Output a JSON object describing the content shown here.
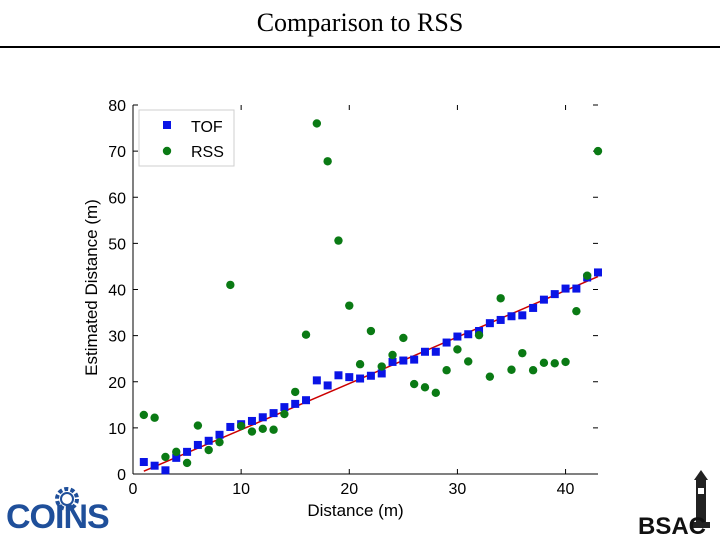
{
  "slide": {
    "title": "Comparison to RSS"
  },
  "logos": {
    "left_text": "COINS",
    "right_text": "BSAC"
  },
  "colors": {
    "tof": "#0a14e6",
    "rss": "#0a7a14",
    "fit_line": "#cc0000",
    "brand_blue": "#1f4f9a"
  },
  "chart_data": {
    "type": "scatter",
    "title": "",
    "xlabel": "Distance (m)",
    "ylabel": "Estimated Distance (m)",
    "xlim": [
      0,
      43
    ],
    "ylim": [
      0,
      80
    ],
    "xticks": [
      0,
      10,
      20,
      30,
      40
    ],
    "yticks": [
      0,
      10,
      20,
      30,
      40,
      50,
      60,
      70,
      80
    ],
    "grid": false,
    "legend_position": "top-left",
    "series": [
      {
        "name": "TOF",
        "marker": "square",
        "color": "#0a14e6",
        "points": [
          [
            1,
            2.6
          ],
          [
            2,
            1.8
          ],
          [
            3,
            0.8
          ],
          [
            4,
            3.5
          ],
          [
            5,
            4.8
          ],
          [
            6,
            6.3
          ],
          [
            7,
            7.2
          ],
          [
            8,
            8.5
          ],
          [
            9,
            10.2
          ],
          [
            10,
            10.8
          ],
          [
            11,
            11.5
          ],
          [
            12,
            12.3
          ],
          [
            13,
            13.2
          ],
          [
            14,
            14.5
          ],
          [
            15,
            15.2
          ],
          [
            16,
            16.0
          ],
          [
            17,
            20.3
          ],
          [
            18,
            19.2
          ],
          [
            19,
            21.4
          ],
          [
            20,
            21.0
          ],
          [
            21,
            20.7
          ],
          [
            22,
            21.3
          ],
          [
            23,
            21.8
          ],
          [
            24,
            24.3
          ],
          [
            25,
            24.6
          ],
          [
            26,
            24.8
          ],
          [
            27,
            26.5
          ],
          [
            28,
            26.5
          ],
          [
            29,
            28.5
          ],
          [
            30,
            29.8
          ],
          [
            31,
            30.3
          ],
          [
            32,
            31.0
          ],
          [
            33,
            32.7
          ],
          [
            34,
            33.4
          ],
          [
            35,
            34.2
          ],
          [
            36,
            34.4
          ],
          [
            37,
            36.0
          ],
          [
            38,
            37.8
          ],
          [
            39,
            39.0
          ],
          [
            40,
            40.2
          ],
          [
            41,
            40.2
          ],
          [
            42,
            42.6
          ],
          [
            43,
            43.7
          ]
        ]
      },
      {
        "name": "RSS",
        "marker": "circle",
        "color": "#0a7a14",
        "points": [
          [
            1,
            12.8
          ],
          [
            2,
            12.2
          ],
          [
            3,
            3.7
          ],
          [
            4,
            4.8
          ],
          [
            5,
            2.4
          ],
          [
            6,
            10.5
          ],
          [
            7,
            5.2
          ],
          [
            8,
            6.9
          ],
          [
            9,
            41.0
          ],
          [
            10,
            10.4
          ],
          [
            11,
            9.2
          ],
          [
            12,
            9.8
          ],
          [
            13,
            9.6
          ],
          [
            14,
            13.0
          ],
          [
            15,
            17.8
          ],
          [
            16,
            30.2
          ],
          [
            17,
            76.0
          ],
          [
            18,
            67.8
          ],
          [
            19,
            50.6
          ],
          [
            20,
            36.5
          ],
          [
            21,
            23.8
          ],
          [
            22,
            31.0
          ],
          [
            23,
            23.3
          ],
          [
            24,
            25.8
          ],
          [
            25,
            29.5
          ],
          [
            26,
            19.5
          ],
          [
            27,
            18.8
          ],
          [
            28,
            17.6
          ],
          [
            29,
            22.5
          ],
          [
            30,
            27.0
          ],
          [
            31,
            24.4
          ],
          [
            32,
            30.1
          ],
          [
            33,
            21.1
          ],
          [
            34,
            38.1
          ],
          [
            35,
            22.6
          ],
          [
            36,
            26.2
          ],
          [
            37,
            22.5
          ],
          [
            38,
            24.1
          ],
          [
            39,
            24.0
          ],
          [
            40,
            24.3
          ],
          [
            41,
            35.3
          ],
          [
            42,
            43.0
          ],
          [
            43,
            70.0
          ]
        ]
      },
      {
        "name": "",
        "marker": "line",
        "color": "#cc0000",
        "points": [
          [
            1,
            0.6
          ],
          [
            16,
            15.6
          ],
          [
            19,
            18.6
          ],
          [
            43,
            42.8
          ]
        ]
      }
    ]
  }
}
